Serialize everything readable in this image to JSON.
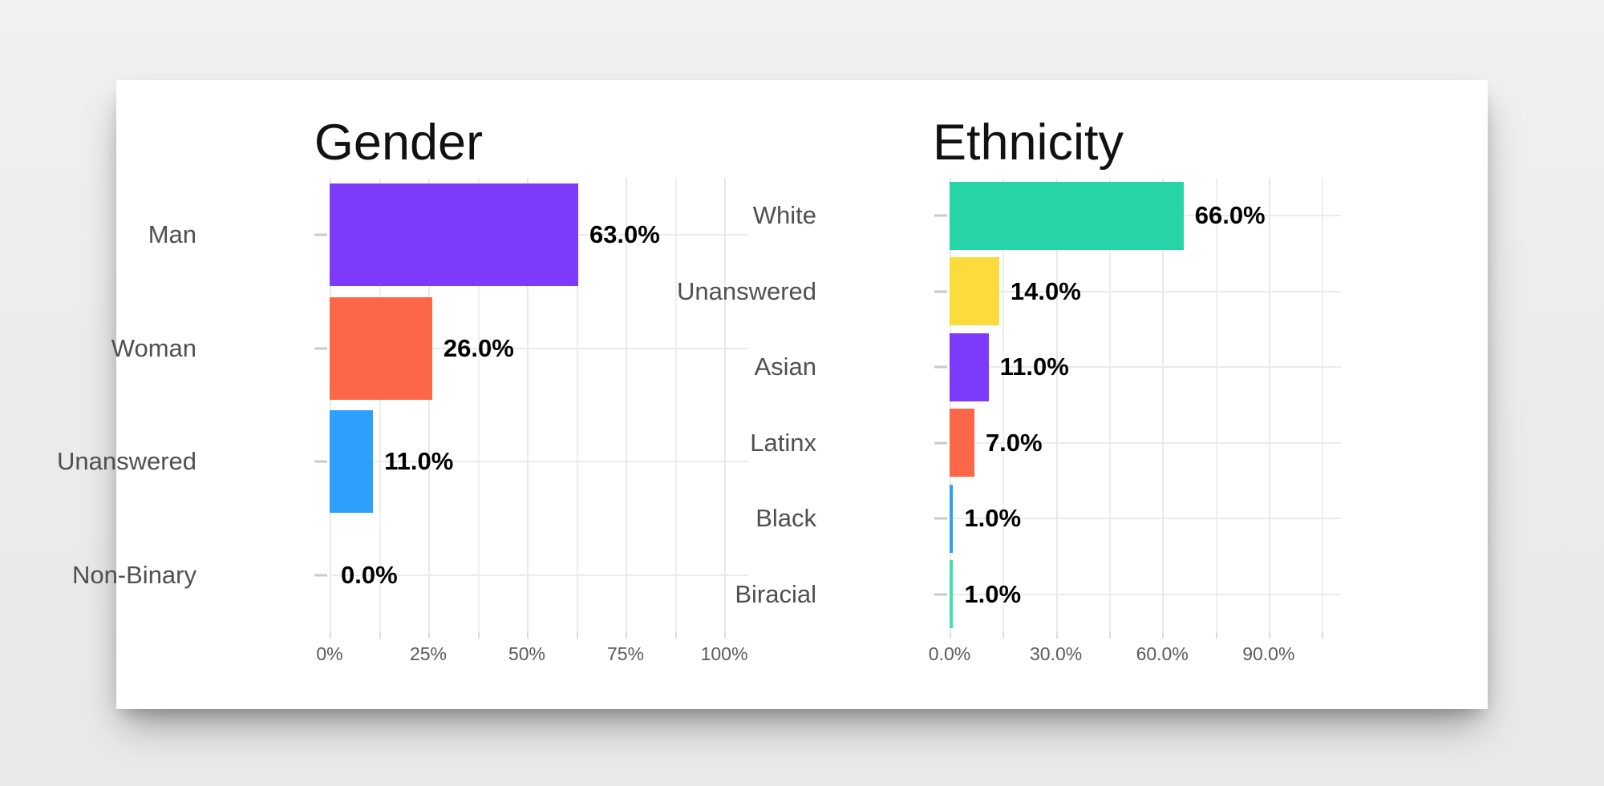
{
  "page": {
    "background_color": "#ededed",
    "card_color": "#ffffff"
  },
  "chart_data": [
    {
      "type": "bar",
      "orientation": "horizontal",
      "title": "Gender",
      "categories": [
        "Man",
        "Woman",
        "Unanswered",
        "Non-Binary"
      ],
      "values": [
        63.0,
        26.0,
        11.0,
        0.0
      ],
      "value_labels": [
        "63.0%",
        "26.0%",
        "11.0%",
        "0.0%"
      ],
      "bar_colors": [
        "#7e3afb",
        "#fc6847",
        "#2f9ffc",
        null
      ],
      "x_tick_values": [
        0,
        25,
        50,
        75,
        100
      ],
      "x_tick_labels": [
        "0%",
        "25%",
        "50%",
        "75%",
        "100%"
      ],
      "xlim": [
        0,
        106
      ],
      "grid": true,
      "legend": false,
      "text_colors": {
        "title": "#111111",
        "category": "#4f4f4f",
        "value": "#000000",
        "axis": "#5a5a5a"
      }
    },
    {
      "type": "bar",
      "orientation": "horizontal",
      "title": "Ethnicity",
      "categories": [
        "White",
        "Unanswered",
        "Asian",
        "Latinx",
        "Black",
        "Biracial"
      ],
      "values": [
        66.0,
        14.0,
        11.0,
        7.0,
        1.0,
        1.0
      ],
      "value_labels": [
        "66.0%",
        "14.0%",
        "11.0%",
        "7.0%",
        "1.0%",
        "1.0%"
      ],
      "bar_colors": [
        "#27d4a8",
        "#fcdc3d",
        "#7e3afb",
        "#fc6847",
        "#2f9ffc",
        "#43dfae"
      ],
      "x_tick_values": [
        0,
        30,
        60,
        90
      ],
      "x_tick_labels": [
        "0.0%",
        "30.0%",
        "60.0%",
        "90.0%"
      ],
      "xlim": [
        0,
        110
      ],
      "grid": true,
      "legend": false,
      "text_colors": {
        "title": "#111111",
        "category": "#4f4f4f",
        "value": "#000000",
        "axis": "#5a5a5a"
      }
    }
  ]
}
